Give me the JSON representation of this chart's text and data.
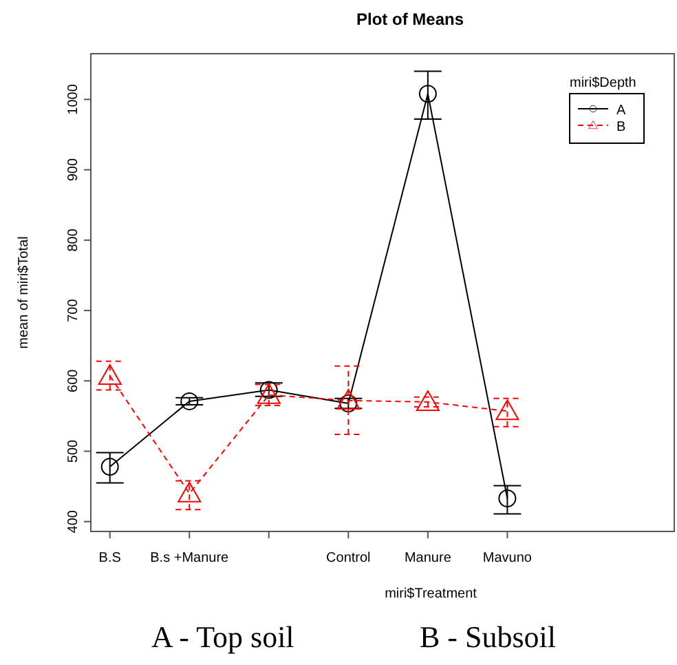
{
  "chart_data": {
    "type": "line",
    "title": "Plot of Means",
    "xlabel": "miri$Treatment",
    "ylabel": "mean of miri$Total",
    "legend_title": "miri$Depth",
    "legend": "top right",
    "grid": false,
    "categories": [
      "B.S",
      "B.s +Manure",
      null,
      "Control",
      "Manure",
      "Mavuno"
    ],
    "ylim": [
      386,
      1065
    ],
    "yticks": [
      400,
      500,
      600,
      700,
      800,
      900,
      1000
    ],
    "series": [
      {
        "name": "A",
        "color": "#000000",
        "marker": "circle",
        "line_style": "solid",
        "values": [
          478,
          571,
          587,
          568,
          1008,
          433
        ],
        "errors": [
          [
            455,
            498
          ],
          [
            566,
            576
          ],
          [
            578,
            597
          ],
          [
            561,
            575
          ],
          [
            972,
            1040
          ],
          [
            411,
            451
          ]
        ]
      },
      {
        "name": "B",
        "color": "#ff0000",
        "marker": "triangle",
        "line_style": "dashed",
        "values": [
          607,
          440,
          580,
          572,
          570,
          557
        ],
        "errors": [
          [
            587,
            628
          ],
          [
            417,
            458
          ],
          [
            565,
            595
          ],
          [
            524,
            621
          ],
          [
            563,
            577
          ],
          [
            535,
            575
          ]
        ]
      }
    ],
    "annotations": [
      "A - Top soil",
      "B - Subsoil"
    ]
  }
}
